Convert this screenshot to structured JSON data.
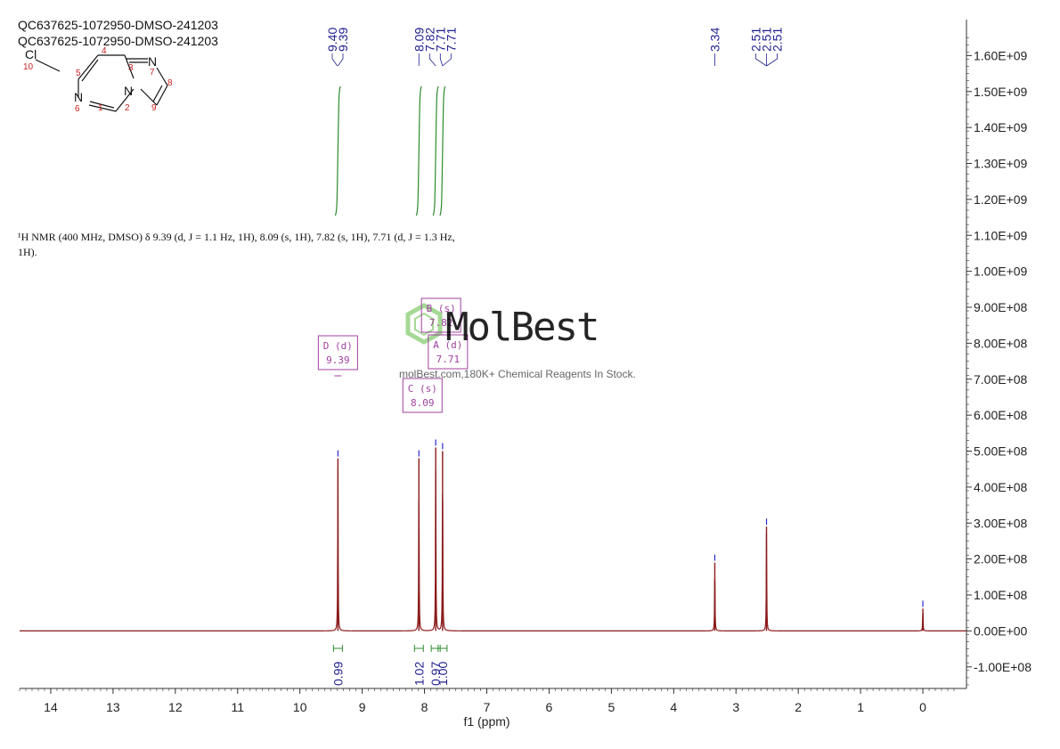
{
  "titles": [
    "QC637625-1072950-DMSO-241203",
    "QC637625-1072950-DMSO-241203"
  ],
  "nmr_description": {
    "line1": "¹H NMR (400 MHz, DMSO) δ 9.39 (d, J = 1.1 Hz, 1H), 8.09 (s, 1H), 7.82 (s, 1H), 7.71 (d, J = 1.3 Hz,",
    "line2": "1H)."
  },
  "structure": {
    "atoms": [
      "Cl",
      "N",
      "N",
      "N"
    ],
    "numbers": [
      "1",
      "2",
      "3",
      "4",
      "5",
      "6",
      "7",
      "8",
      "9",
      "10"
    ]
  },
  "watermark": {
    "brand": "MolBest",
    "tagline": "molBest.com,180K+ Chemical Reagents In Stock."
  },
  "colors": {
    "spectrum": "#8B1A1A",
    "axis": "#333333",
    "peak_label": "#1F1F8F",
    "integral": "#2E8B2E",
    "multiplet_box": "#A040A0",
    "structure_number": "#CC2222"
  },
  "chart_data": {
    "type": "line",
    "xlabel": "f1 (ppm)",
    "xlim": [
      14.5,
      -0.7
    ],
    "ylim": [
      -160000000.0,
      1700000000.0
    ],
    "x_ticks": [
      "14",
      "13",
      "12",
      "11",
      "10",
      "9",
      "8",
      "7",
      "6",
      "5",
      "4",
      "3",
      "2",
      "1",
      "0"
    ],
    "y_ticks": [
      "-1.00E+08",
      "0.00E+00",
      "1.00E+08",
      "2.00E+08",
      "3.00E+08",
      "4.00E+08",
      "5.00E+08",
      "6.00E+08",
      "7.00E+08",
      "8.00E+08",
      "9.00E+08",
      "1.00E+09",
      "1.10E+09",
      "1.20E+09",
      "1.30E+09",
      "1.40E+09",
      "1.50E+09",
      "1.60E+09"
    ],
    "peaks": [
      {
        "ppm": 9.39,
        "height": 480000000.0
      },
      {
        "ppm": 8.09,
        "height": 480000000.0
      },
      {
        "ppm": 7.82,
        "height": 510000000.0
      },
      {
        "ppm": 7.71,
        "height": 500000000.0
      },
      {
        "ppm": 3.34,
        "height": 190000000.0
      },
      {
        "ppm": 2.51,
        "height": 290000000.0
      },
      {
        "ppm": 0.0,
        "height": 62000000.0
      }
    ],
    "peak_label_groups": [
      {
        "labels": [
          "9.40",
          "9.39"
        ],
        "ppm": [
          9.4,
          9.39
        ]
      },
      {
        "labels": [
          "8.09",
          "7.82",
          "7.71",
          "7.71"
        ],
        "ppm": [
          8.09,
          7.82,
          7.71,
          7.71
        ]
      },
      {
        "labels": [
          "3.34"
        ],
        "ppm": [
          3.34
        ]
      },
      {
        "labels": [
          "2.51",
          "2.51",
          "2.51"
        ],
        "ppm": [
          2.51,
          2.51,
          2.51
        ]
      }
    ],
    "integrals": [
      {
        "ppm": 9.39,
        "value": "0.99"
      },
      {
        "ppm": 8.09,
        "value": "1.02"
      },
      {
        "ppm": 7.82,
        "value": "0.97"
      },
      {
        "ppm": 7.71,
        "value": "1.00"
      }
    ],
    "multiplets": [
      {
        "letter_mult": "D (d)",
        "shift": "9.39",
        "ppm": 9.39
      },
      {
        "letter_mult": "C (s)",
        "shift": "8.09",
        "ppm": 8.09
      },
      {
        "letter_mult": "B (s)",
        "shift": "7.82",
        "ppm": 7.82
      },
      {
        "letter_mult": "A (d)",
        "shift": "7.71",
        "ppm": 7.71
      }
    ]
  }
}
